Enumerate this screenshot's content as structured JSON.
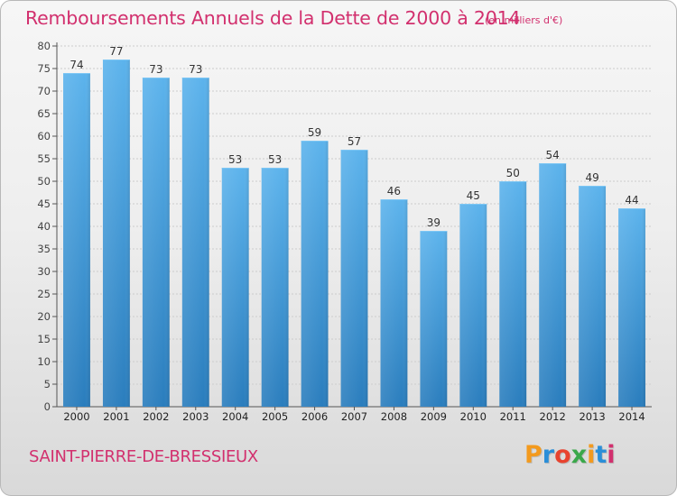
{
  "header": {
    "title": "Remboursements Annuels de la Dette de 2000 à 2014",
    "subtitle": "(en milliers d'€)"
  },
  "footer": {
    "commune": "SAINT-PIERRE-DE-BRESSIEUX",
    "logo": "Proxiti"
  },
  "colors": {
    "bar_top": "#5cb3ec",
    "bar_bottom": "#2a7dbd",
    "title": "#d2306e",
    "axis": "#555555",
    "grid": "#cccccc"
  },
  "chart_data": {
    "type": "bar",
    "categories": [
      "2000",
      "2001",
      "2002",
      "2003",
      "2004",
      "2005",
      "2006",
      "2007",
      "2008",
      "2009",
      "2010",
      "2011",
      "2012",
      "2013",
      "2014"
    ],
    "values": [
      74,
      77,
      73,
      73,
      53,
      53,
      59,
      57,
      46,
      39,
      45,
      50,
      54,
      49,
      44
    ],
    "title": "Remboursements Annuels de la Dette de 2000 à 2014",
    "subtitle": "(en milliers d'€)",
    "xlabel": "",
    "ylabel": "",
    "ylim": [
      0,
      80
    ],
    "yticks": [
      0,
      5,
      10,
      15,
      20,
      25,
      30,
      35,
      40,
      45,
      50,
      55,
      60,
      65,
      70,
      75,
      80
    ],
    "grid": true,
    "data_labels": true
  }
}
